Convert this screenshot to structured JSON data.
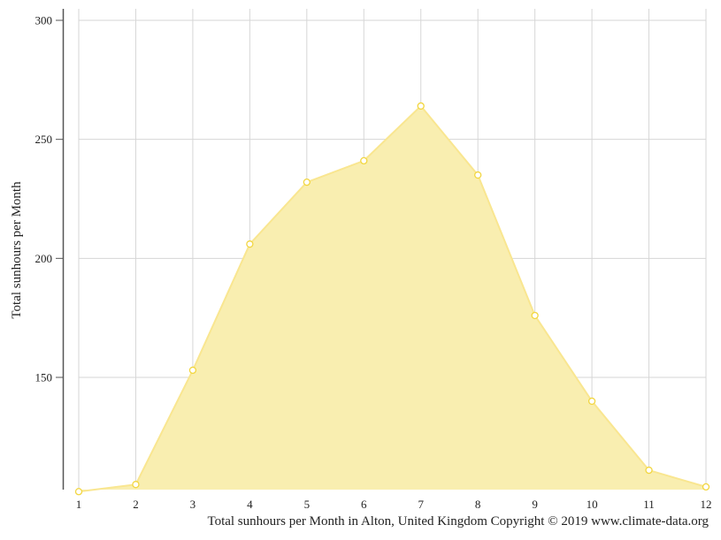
{
  "chart_data": {
    "type": "area",
    "x": [
      1,
      2,
      3,
      4,
      5,
      6,
      7,
      8,
      9,
      10,
      11,
      12
    ],
    "series": [
      {
        "values": [
          102,
          105,
          153,
          206,
          232,
          241,
          264,
          235,
          176,
          140,
          111,
          104
        ]
      }
    ],
    "ylabel": "Total sunhours per Month",
    "xlabel": "",
    "ylim": [
      102,
      300
    ],
    "yticks": [
      150,
      200,
      250,
      300
    ],
    "grid": true,
    "colors": {
      "fill": "#f9eeb0",
      "line": "#f9e690",
      "marker_stroke": "#f2d640",
      "grid": "#d6d6d6",
      "axis": "#555555"
    }
  },
  "caption": "Total sunhours per Month in Alton, United Kingdom Copyright © 2019 www.climate-data.org"
}
